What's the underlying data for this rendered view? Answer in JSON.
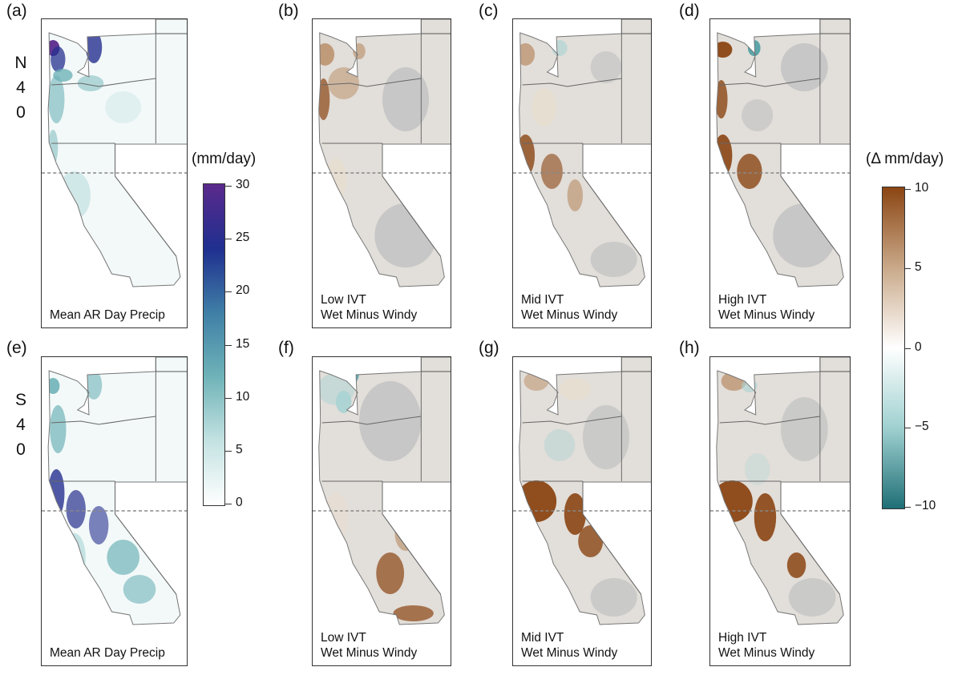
{
  "rows": [
    {
      "label_lines": [
        "N",
        "4",
        "0"
      ]
    },
    {
      "label_lines": [
        "S",
        "4",
        "0"
      ]
    }
  ],
  "panels": [
    {
      "id": "a",
      "tag": "(a)",
      "caption": [
        "Mean AR Day Precip"
      ],
      "style": "blue-north"
    },
    {
      "id": "b",
      "tag": "(b)",
      "caption": [
        "Low IVT",
        "Wet Minus Windy"
      ],
      "style": "diff-light"
    },
    {
      "id": "c",
      "tag": "(c)",
      "caption": [
        "Mid IVT",
        "Wet Minus Windy"
      ],
      "style": "diff-mid"
    },
    {
      "id": "d",
      "tag": "(d)",
      "caption": [
        "High IVT",
        "Wet Minus Windy"
      ],
      "style": "diff-high"
    },
    {
      "id": "e",
      "tag": "(e)",
      "caption": [
        "Mean AR Day Precip"
      ],
      "style": "blue-south"
    },
    {
      "id": "f",
      "tag": "(f)",
      "caption": [
        "Low IVT",
        "Wet Minus Windy"
      ],
      "style": "diff-south-low"
    },
    {
      "id": "g",
      "tag": "(g)",
      "caption": [
        "Mid IVT",
        "Wet Minus Windy"
      ],
      "style": "diff-south-mid"
    },
    {
      "id": "h",
      "tag": "(h)",
      "caption": [
        "High IVT",
        "Wet Minus Windy"
      ],
      "style": "diff-south-high"
    }
  ],
  "precip_legend": {
    "title": "(mm/day)",
    "ticks": [
      "30",
      "25",
      "20",
      "15",
      "10",
      "5",
      "0"
    ],
    "colors": [
      "#ffffff",
      "#c4e2e2",
      "#6fb3b8",
      "#3f7fa6",
      "#1f2f8f",
      "#5a2a8c"
    ]
  },
  "diff_legend": {
    "title": "(Δ mm/day)",
    "ticks": [
      "10",
      "5",
      "0",
      "−5",
      "−10"
    ],
    "colors": [
      "#1f6f76",
      "#9fd0d0",
      "#ffffff",
      "#c9a989",
      "#8b4513"
    ]
  }
}
